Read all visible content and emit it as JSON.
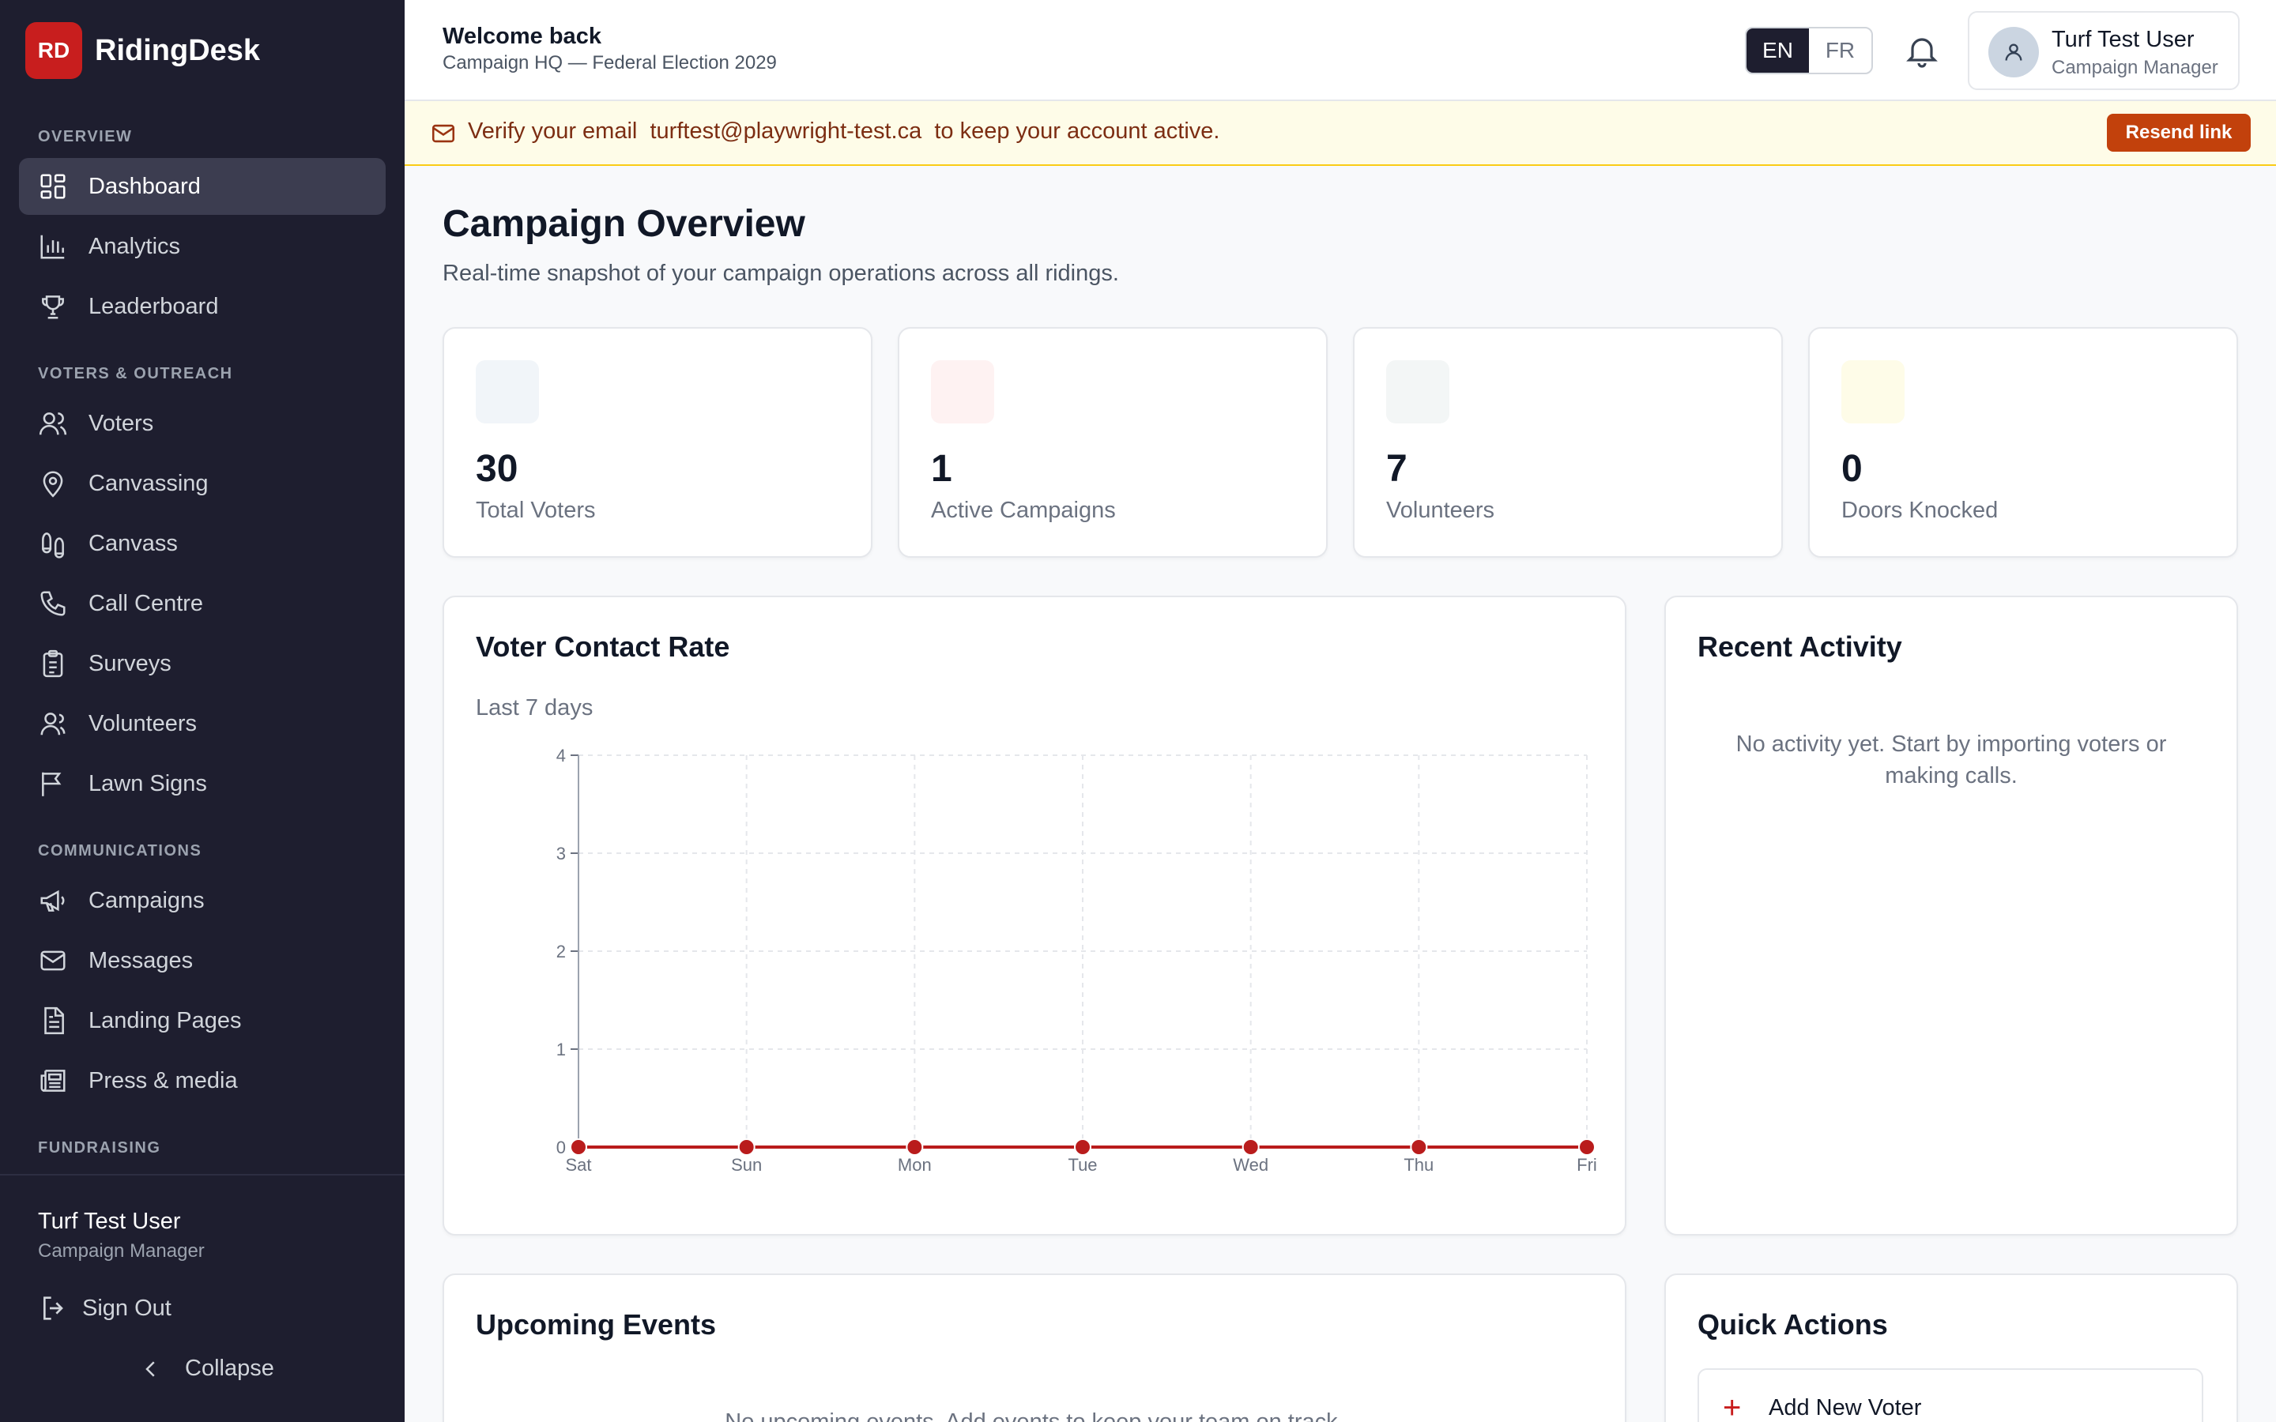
{
  "brand": {
    "logo": "RD",
    "name": "RidingDesk"
  },
  "sidebar": {
    "sections": [
      {
        "title": "OVERVIEW",
        "items": [
          {
            "label": "Dashboard",
            "icon": "dashboard-icon",
            "active": true
          },
          {
            "label": "Analytics",
            "icon": "bar-chart-icon"
          },
          {
            "label": "Leaderboard",
            "icon": "trophy-icon"
          }
        ]
      },
      {
        "title": "VOTERS & OUTREACH",
        "items": [
          {
            "label": "Voters",
            "icon": "users-icon"
          },
          {
            "label": "Canvassing",
            "icon": "map-pin-icon"
          },
          {
            "label": "Canvass",
            "icon": "footprints-icon"
          },
          {
            "label": "Call Centre",
            "icon": "phone-icon"
          },
          {
            "label": "Surveys",
            "icon": "clipboard-icon"
          },
          {
            "label": "Volunteers",
            "icon": "user-group-icon"
          },
          {
            "label": "Lawn Signs",
            "icon": "flag-icon"
          }
        ]
      },
      {
        "title": "COMMUNICATIONS",
        "items": [
          {
            "label": "Campaigns",
            "icon": "megaphone-icon"
          },
          {
            "label": "Messages",
            "icon": "mail-icon"
          },
          {
            "label": "Landing Pages",
            "icon": "file-icon"
          },
          {
            "label": "Press & media",
            "icon": "newspaper-icon"
          }
        ]
      },
      {
        "title": "FUNDRAISING",
        "items": []
      }
    ],
    "user": {
      "name": "Turf Test User",
      "role": "Campaign Manager"
    },
    "sign_out": "Sign Out",
    "collapse": "Collapse"
  },
  "header": {
    "welcome": "Welcome back",
    "subtitle": "Campaign HQ — Federal Election 2029",
    "lang": {
      "en": "EN",
      "fr": "FR",
      "selected": "EN"
    },
    "user": {
      "name": "Turf Test User",
      "role": "Campaign Manager"
    }
  },
  "banner": {
    "prefix": "Verify your email",
    "email": "turftest@playwright-test.ca",
    "suffix": "to keep your account active.",
    "button": "Resend link"
  },
  "page": {
    "title": "Campaign Overview",
    "subtitle": "Real-time snapshot of your campaign operations across all ridings."
  },
  "stats": [
    {
      "value": "30",
      "label": "Total Voters",
      "tint": "#f1f5f9"
    },
    {
      "value": "1",
      "label": "Active Campaigns",
      "tint": "#fef2f2"
    },
    {
      "value": "7",
      "label": "Volunteers",
      "tint": "#f3f6f6"
    },
    {
      "value": "0",
      "label": "Doors Knocked",
      "tint": "#fefce8"
    }
  ],
  "contact_chart": {
    "title": "Voter Contact Rate",
    "subtitle": "Last 7 days"
  },
  "chart_data": {
    "type": "line",
    "title": "Voter Contact Rate",
    "subtitle": "Last 7 days",
    "x": [
      "Sat",
      "Sun",
      "Mon",
      "Tue",
      "Wed",
      "Thu",
      "Fri"
    ],
    "series": [
      {
        "values": [
          0,
          0,
          0,
          0,
          0,
          0,
          0
        ],
        "color": "#b91c1c"
      }
    ],
    "ylim": [
      0,
      4
    ],
    "yticks": [
      0,
      1,
      2,
      3,
      4
    ],
    "grid": true
  },
  "recent_activity": {
    "title": "Recent Activity",
    "empty": "No activity yet. Start by importing voters or making calls."
  },
  "upcoming_events": {
    "title": "Upcoming Events",
    "empty": "No upcoming events. Add events to keep your team on track."
  },
  "quick_actions": {
    "title": "Quick Actions",
    "items": [
      {
        "label": "Add New Voter",
        "icon": "plus-icon"
      }
    ]
  },
  "colors": {
    "sidebar_bg": "#1e1e2f",
    "brand": "#c81e1e",
    "banner_bg": "#fefce8",
    "resend": "#c2410c"
  }
}
